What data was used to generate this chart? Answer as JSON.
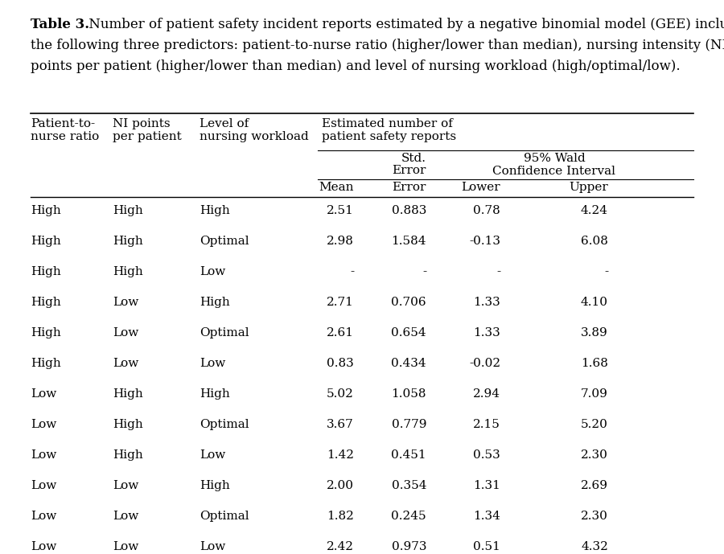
{
  "title_bold": "Table 3.",
  "title_line1_rest": " Number of patient safety incident reports estimated by a negative binomial model (GEE) including",
  "title_line2": "the following three predictors: patient-to-nurse ratio (higher/lower than median), nursing intensity (NI)",
  "title_line3": "points per patient (higher/lower than median) and level of nursing workload (high/optimal/low).",
  "rows": [
    [
      "High",
      "High",
      "High",
      "2.51",
      "0.883",
      "0.78",
      "4.24"
    ],
    [
      "High",
      "High",
      "Optimal",
      "2.98",
      "1.584",
      "-0.13",
      "6.08"
    ],
    [
      "High",
      "High",
      "Low",
      "-",
      "-",
      "-",
      "-"
    ],
    [
      "High",
      "Low",
      "High",
      "2.71",
      "0.706",
      "1.33",
      "4.10"
    ],
    [
      "High",
      "Low",
      "Optimal",
      "2.61",
      "0.654",
      "1.33",
      "3.89"
    ],
    [
      "High",
      "Low",
      "Low",
      "0.83",
      "0.434",
      "-0.02",
      "1.68"
    ],
    [
      "Low",
      "High",
      "High",
      "5.02",
      "1.058",
      "2.94",
      "7.09"
    ],
    [
      "Low",
      "High",
      "Optimal",
      "3.67",
      "0.779",
      "2.15",
      "5.20"
    ],
    [
      "Low",
      "High",
      "Low",
      "1.42",
      "0.451",
      "0.53",
      "2.30"
    ],
    [
      "Low",
      "Low",
      "High",
      "2.00",
      "0.354",
      "1.31",
      "2.69"
    ],
    [
      "Low",
      "Low",
      "Optimal",
      "1.82",
      "0.245",
      "1.34",
      "2.30"
    ],
    [
      "Low",
      "Low",
      "Low",
      "2.42",
      "0.973",
      "0.51",
      "4.32"
    ]
  ],
  "background_color": "#ffffff",
  "text_color": "#000000",
  "font_size": 11.0,
  "title_font_size": 12.0
}
